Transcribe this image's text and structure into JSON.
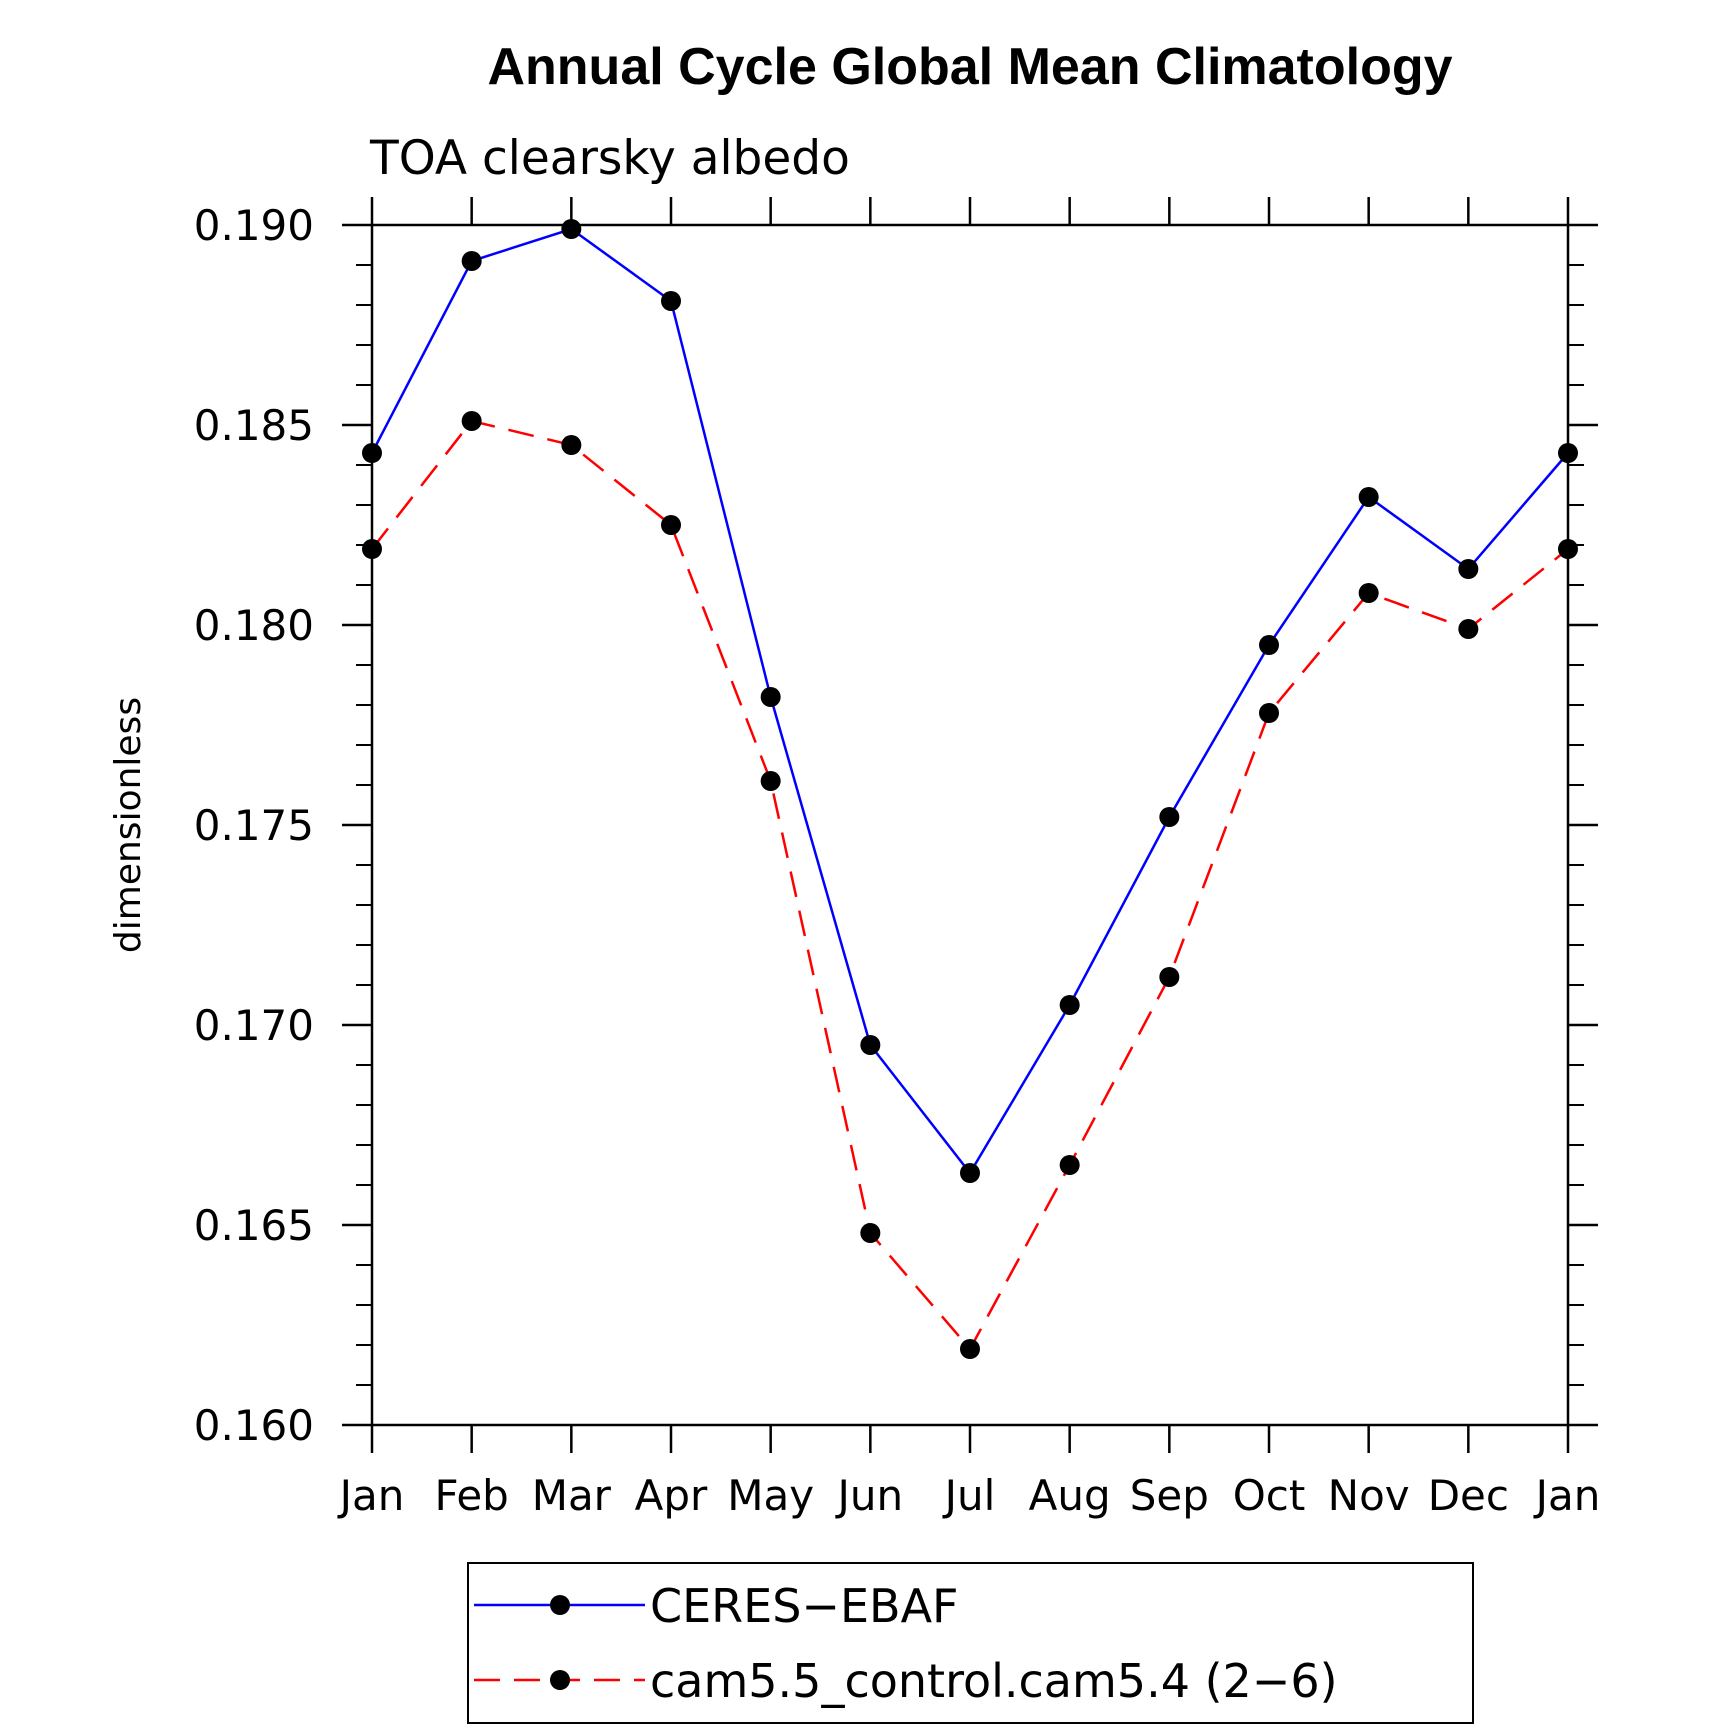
{
  "chart_data": {
    "type": "line",
    "title": "Annual Cycle Global Mean Climatology",
    "subtitle": "TOA clearsky albedo",
    "xlabel": "",
    "ylabel": "dimensionless",
    "categories": [
      "Jan",
      "Feb",
      "Mar",
      "Apr",
      "May",
      "Jun",
      "Jul",
      "Aug",
      "Sep",
      "Oct",
      "Nov",
      "Dec",
      "Jan"
    ],
    "ylim": [
      0.16,
      0.19
    ],
    "yticks": [
      "0.160",
      "0.165",
      "0.170",
      "0.175",
      "0.180",
      "0.185",
      "0.190"
    ],
    "ytick_values": [
      0.16,
      0.165,
      0.17,
      0.175,
      0.18,
      0.185,
      0.19
    ],
    "series": [
      {
        "name": "CERES-EBAF",
        "color": "#0000ff",
        "dash": "solid",
        "values": [
          0.1843,
          0.1891,
          0.1899,
          0.1881,
          0.1782,
          0.1695,
          0.1663,
          0.1705,
          0.1752,
          0.1795,
          0.1832,
          0.1814,
          0.1843
        ]
      },
      {
        "name": "cam5.5_control.cam5.4 (2-6)",
        "color": "#ff0000",
        "dash": "dashed",
        "values": [
          0.1819,
          0.1851,
          0.1845,
          0.1825,
          0.1761,
          0.1648,
          0.1619,
          0.1665,
          0.1712,
          0.1778,
          0.1808,
          0.1799,
          0.1819
        ]
      }
    ],
    "legend": {
      "position": "bottom-center",
      "entries": [
        "CERES−EBAF",
        "cam5.5_control.cam5.4 (2−6)"
      ]
    },
    "grid": false
  }
}
